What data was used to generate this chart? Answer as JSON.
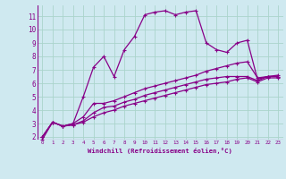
{
  "background_color": "#cfe9f0",
  "grid_color": "#aad4cc",
  "line_color": "#880088",
  "marker": "+",
  "xlim": [
    -0.5,
    23.5
  ],
  "ylim": [
    1.8,
    11.8
  ],
  "xlabel": "Windchill (Refroidissement éolien,°C)",
  "xticks": [
    0,
    1,
    2,
    3,
    4,
    5,
    6,
    7,
    8,
    9,
    10,
    11,
    12,
    13,
    14,
    15,
    16,
    17,
    18,
    19,
    20,
    21,
    22,
    23
  ],
  "yticks": [
    2,
    3,
    4,
    5,
    6,
    7,
    8,
    9,
    10,
    11
  ],
  "series": [
    [
      1.8,
      3.1,
      2.8,
      3.0,
      5.0,
      7.2,
      8.0,
      6.5,
      8.5,
      9.5,
      11.1,
      11.3,
      11.4,
      11.1,
      11.3,
      11.4,
      9.0,
      8.5,
      8.3,
      9.0,
      9.2,
      6.3,
      6.5,
      6.5
    ],
    [
      2.0,
      3.1,
      2.8,
      3.0,
      3.5,
      4.5,
      4.5,
      4.7,
      5.0,
      5.3,
      5.6,
      5.8,
      6.0,
      6.2,
      6.4,
      6.6,
      6.9,
      7.1,
      7.3,
      7.5,
      7.6,
      6.4,
      6.5,
      6.6
    ],
    [
      2.0,
      3.1,
      2.8,
      2.9,
      3.2,
      3.8,
      4.2,
      4.3,
      4.6,
      4.8,
      5.1,
      5.3,
      5.5,
      5.7,
      5.9,
      6.1,
      6.3,
      6.4,
      6.5,
      6.5,
      6.5,
      6.2,
      6.5,
      6.5
    ],
    [
      2.0,
      3.1,
      2.8,
      2.9,
      3.1,
      3.5,
      3.8,
      4.0,
      4.3,
      4.5,
      4.7,
      4.9,
      5.1,
      5.3,
      5.5,
      5.7,
      5.9,
      6.0,
      6.1,
      6.3,
      6.4,
      6.1,
      6.4,
      6.4
    ]
  ]
}
